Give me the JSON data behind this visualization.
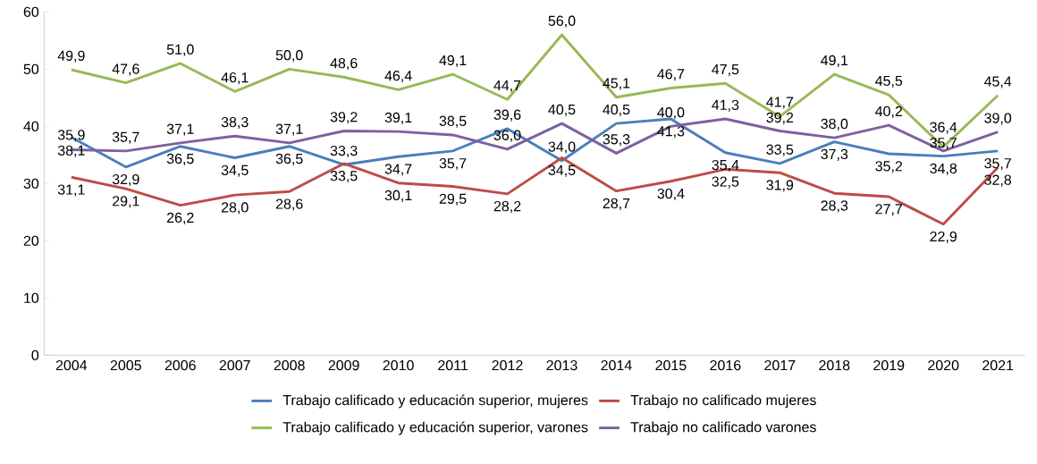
{
  "chart_data": {
    "type": "line",
    "categories": [
      "2004",
      "2005",
      "2006",
      "2007",
      "2008",
      "2009",
      "2010",
      "2011",
      "2012",
      "2013",
      "2014",
      "2015",
      "2016",
      "2017",
      "2018",
      "2019",
      "2020",
      "2021"
    ],
    "series": [
      {
        "name": "Trabajo calificado y educación superior, mujeres",
        "color": "#4a7ebb",
        "values": [
          38.1,
          32.9,
          36.5,
          34.5,
          36.5,
          33.3,
          34.7,
          35.7,
          39.6,
          34.0,
          40.5,
          41.3,
          35.4,
          33.5,
          37.3,
          35.2,
          34.8,
          35.7
        ],
        "value_labels": [
          "38,1",
          "32,9",
          "36,5",
          "34,5",
          "36,5",
          "33,3",
          "34,7",
          "35,7",
          "39,6",
          "34,0",
          "40,5",
          "41,3",
          "35,4",
          "33,5",
          "37,3",
          "35,2",
          "34,8",
          "35,7"
        ]
      },
      {
        "name": "Trabajo no calificado mujeres",
        "color": "#be4b48",
        "values": [
          31.1,
          29.1,
          26.2,
          28.0,
          28.6,
          33.5,
          30.1,
          29.5,
          28.2,
          34.5,
          28.7,
          30.4,
          32.5,
          31.9,
          28.3,
          27.7,
          22.9,
          32.8
        ],
        "value_labels": [
          "31,1",
          "29,1",
          "26,2",
          "28,0",
          "28,6",
          "33,5",
          "30,1",
          "29,5",
          "28,2",
          "34,5",
          "28,7",
          "30,4",
          "32,5",
          "31,9",
          "28,3",
          "27,7",
          "22,9",
          "32,8"
        ]
      },
      {
        "name": "Trabajo calificado y educación superior, varones",
        "color": "#98b954",
        "values": [
          49.9,
          47.6,
          51.0,
          46.1,
          50.0,
          48.6,
          46.4,
          49.1,
          44.7,
          56.0,
          45.1,
          46.7,
          47.5,
          41.7,
          49.1,
          45.5,
          36.4,
          45.4
        ],
        "value_labels": [
          "49,9",
          "47,6",
          "51,0",
          "46,1",
          "50,0",
          "48,6",
          "46,4",
          "49,1",
          "44,7",
          "56,0",
          "45,1",
          "46,7",
          "47,5",
          "41,7",
          "49,1",
          "45,5",
          "36,4",
          "45,4"
        ]
      },
      {
        "name": "Trabajo no calificado varones",
        "color": "#7d60a0",
        "values": [
          35.9,
          35.7,
          37.1,
          38.3,
          37.1,
          39.2,
          39.1,
          38.5,
          36.0,
          40.5,
          35.3,
          40.0,
          41.3,
          39.2,
          38.0,
          40.2,
          35.7,
          39.0
        ],
        "value_labels": [
          "35,9",
          "35,7",
          "37,1",
          "38,3",
          "37,1",
          "39,2",
          "39,1",
          "38,5",
          "36,0",
          "40,5",
          "35,3",
          "40,0",
          "41,3",
          "39,2",
          "38,0",
          "40,2",
          "35,7",
          "39,0"
        ]
      }
    ],
    "ylim": [
      0,
      60
    ],
    "yticks": [
      0,
      10,
      20,
      30,
      40,
      50,
      60
    ],
    "grid": false,
    "legend": "bottom",
    "marker": "none",
    "line_style": "solid"
  }
}
